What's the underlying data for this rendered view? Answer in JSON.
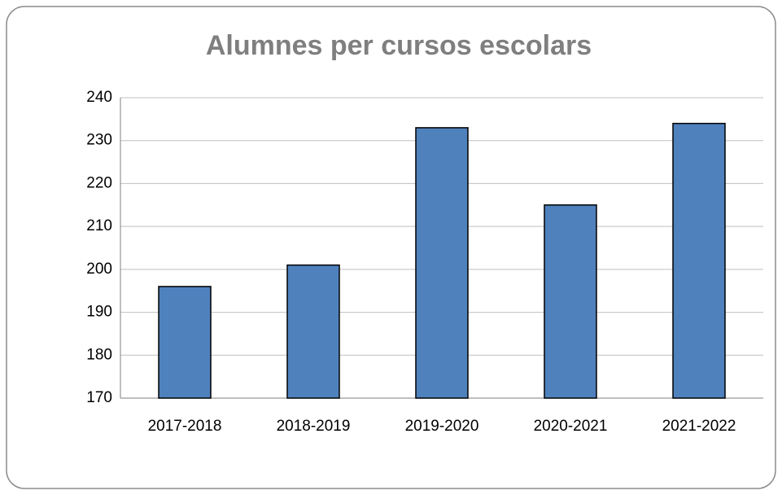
{
  "chart_data": {
    "type": "bar",
    "title": "Alumnes per cursos escolars",
    "categories": [
      "2017-2018",
      "2018-2019",
      "2019-2020",
      "2020-2021",
      "2021-2022"
    ],
    "values": [
      196,
      201,
      233,
      215,
      234
    ],
    "color": "#4f81bd",
    "ylim": [
      170,
      240
    ],
    "yticks": [
      170,
      180,
      190,
      200,
      210,
      220,
      230,
      240
    ],
    "grid": true
  }
}
